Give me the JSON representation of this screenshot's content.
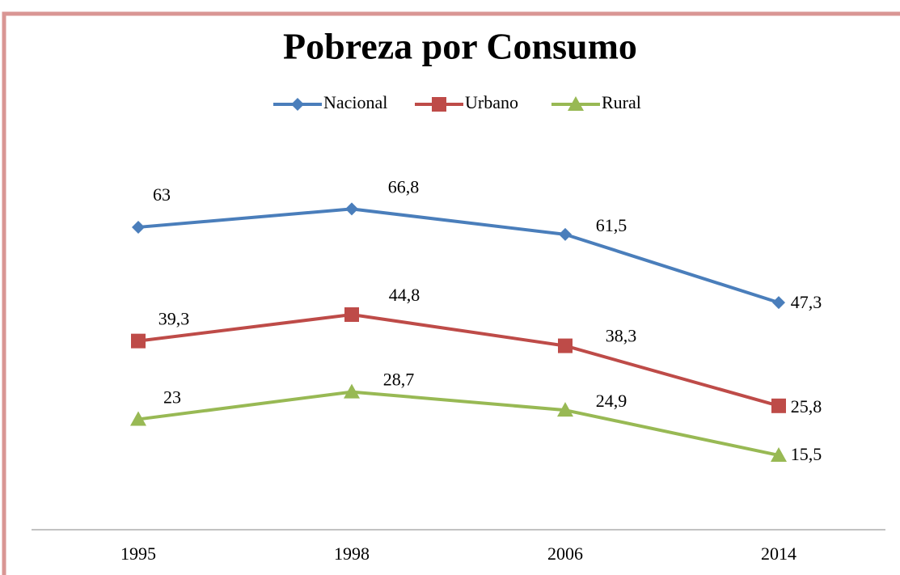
{
  "chart_data": {
    "type": "line",
    "title": "Pobreza por Consumo",
    "categories": [
      "1995",
      "1998",
      "2006",
      "2014"
    ],
    "series": [
      {
        "name": "Nacional",
        "color": "#4a7ebb",
        "marker": "diamond",
        "values": [
          63,
          66.8,
          61.5,
          47.3
        ],
        "value_labels": [
          "63",
          "66,8",
          "61,5",
          "47,3"
        ]
      },
      {
        "name": "Urbano",
        "color": "#be4b48",
        "marker": "square",
        "values": [
          39.3,
          44.8,
          38.3,
          25.8
        ],
        "value_labels": [
          "39,3",
          "44,8",
          "38,3",
          "25,8"
        ]
      },
      {
        "name": "Rural",
        "color": "#98b954",
        "marker": "triangle",
        "values": [
          23,
          28.7,
          24.9,
          15.5
        ],
        "value_labels": [
          "23",
          "28,7",
          "24,9",
          "15,5"
        ]
      }
    ],
    "ylim": [
      0,
      80
    ],
    "legend": "top"
  }
}
